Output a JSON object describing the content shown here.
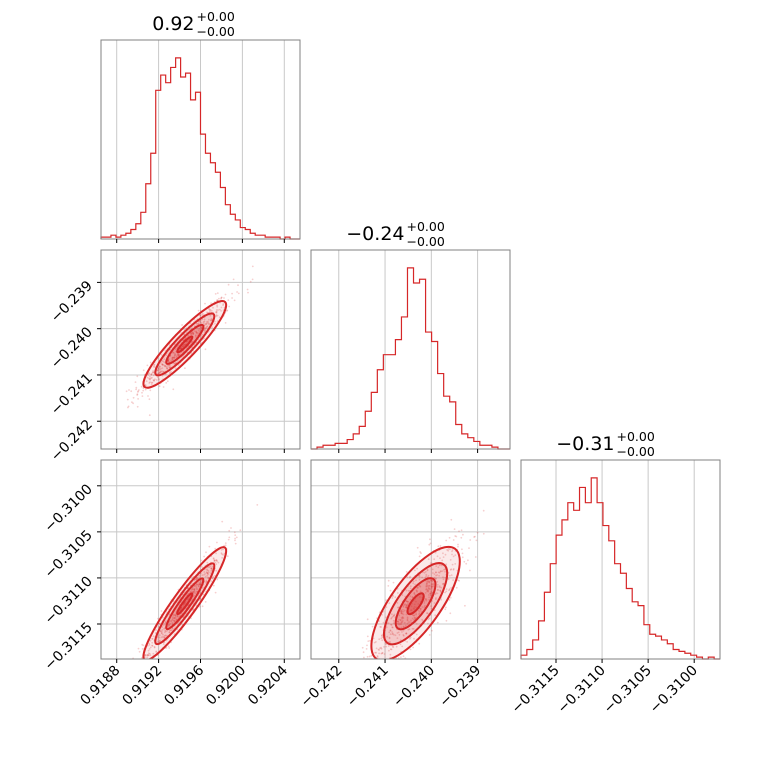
{
  "chart_data": {
    "type": "corner",
    "color": "#d62728",
    "grid": true,
    "parameters": [
      {
        "title": {
          "value": "0.92",
          "upper": "+0.00",
          "lower": "−0.00"
        },
        "range": [
          0.91865,
          0.92055
        ],
        "ticks": [
          {
            "value": 0.9188,
            "label": "0.9188"
          },
          {
            "value": 0.9192,
            "label": "0.9192"
          },
          {
            "value": 0.9196,
            "label": "0.9196"
          },
          {
            "value": 0.92,
            "label": "0.9200"
          },
          {
            "value": 0.9204,
            "label": "0.9204"
          }
        ],
        "median": 0.91945,
        "sigma": 0.00016,
        "histogram": [
          0.01,
          0.01,
          0.02,
          0.01,
          0.02,
          0.03,
          0.05,
          0.08,
          0.14,
          0.29,
          0.45,
          0.78,
          0.86,
          0.82,
          0.9,
          0.95,
          0.85,
          0.87,
          0.73,
          0.77,
          0.55,
          0.45,
          0.4,
          0.35,
          0.27,
          0.18,
          0.13,
          0.1,
          0.06,
          0.05,
          0.03,
          0.02,
          0.02,
          0.01,
          0.01,
          0.01,
          0.0,
          0.01,
          0.0,
          0.0
        ]
      },
      {
        "title": {
          "value": "−0.24",
          "upper": "+0.00",
          "lower": "−0.00"
        },
        "range": [
          -0.2426,
          -0.2383
        ],
        "ticks": [
          {
            "value": -0.242,
            "label": "−0.242"
          },
          {
            "value": -0.241,
            "label": "−0.241"
          },
          {
            "value": -0.24,
            "label": "−0.240"
          },
          {
            "value": -0.239,
            "label": "−0.239"
          }
        ],
        "median": -0.24034,
        "sigma": 0.00038,
        "histogram": [
          0.0,
          0.01,
          0.02,
          0.02,
          0.03,
          0.03,
          0.05,
          0.08,
          0.12,
          0.2,
          0.3,
          0.42,
          0.5,
          0.5,
          0.58,
          0.7,
          0.96,
          0.88,
          0.9,
          0.62,
          0.57,
          0.4,
          0.28,
          0.25,
          0.13,
          0.08,
          0.06,
          0.04,
          0.02,
          0.02,
          0.01,
          0.0,
          0.0
        ]
      },
      {
        "title": {
          "value": "−0.31",
          "upper": "+0.00",
          "lower": "−0.00"
        },
        "range": [
          -0.31188,
          -0.30972
        ],
        "ticks": [
          {
            "value": -0.3115,
            "label": "−0.3115"
          },
          {
            "value": -0.311,
            "label": "−0.3110"
          },
          {
            "value": -0.3105,
            "label": "−0.3105"
          },
          {
            "value": -0.31,
            "label": "−0.3100"
          }
        ],
        "y_ticks": [
          {
            "value": -0.31,
            "label": "−0.3100"
          },
          {
            "value": -0.3105,
            "label": "−0.3105"
          },
          {
            "value": -0.311,
            "label": "−0.3110"
          },
          {
            "value": -0.3115,
            "label": "−0.3115"
          }
        ],
        "median": -0.31128,
        "sigma": 0.00025,
        "histogram": [
          0.02,
          0.05,
          0.1,
          0.2,
          0.35,
          0.5,
          0.65,
          0.73,
          0.82,
          0.78,
          0.9,
          0.82,
          0.95,
          0.82,
          0.7,
          0.62,
          0.5,
          0.45,
          0.37,
          0.3,
          0.28,
          0.18,
          0.13,
          0.12,
          0.1,
          0.08,
          0.05,
          0.04,
          0.03,
          0.02,
          0.01,
          0.0,
          0.01,
          0.0
        ]
      }
    ],
    "correlations": {
      "1-0": 0.93,
      "2-0": 0.95,
      "2-1": 0.8
    }
  }
}
